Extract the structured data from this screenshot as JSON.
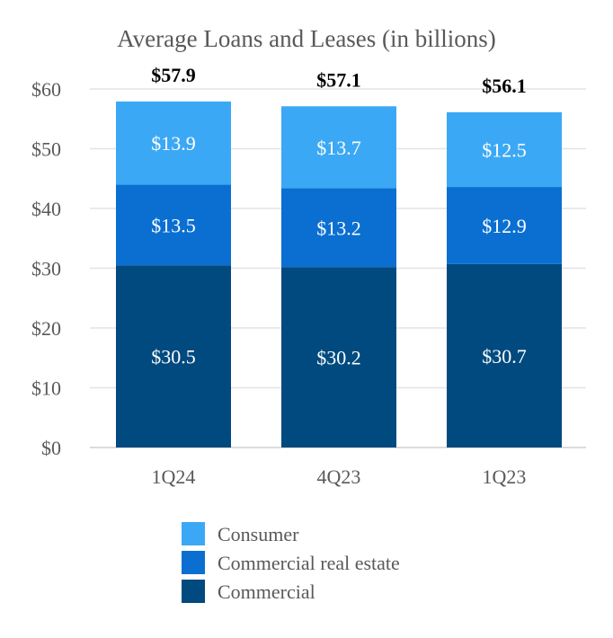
{
  "chart_data": {
    "type": "bar",
    "stacked": true,
    "title": "Average Loans and Leases (in billions)",
    "categories": [
      "1Q24",
      "4Q23",
      "1Q23"
    ],
    "ylim": [
      0,
      60
    ],
    "yticks": [
      0,
      10,
      20,
      30,
      40,
      50,
      60
    ],
    "ytick_labels": [
      "$0",
      "$10",
      "$20",
      "$30",
      "$40",
      "$50",
      "$60"
    ],
    "grid": true,
    "legend_position": "bottom",
    "series": [
      {
        "name": "Commercial",
        "values": [
          30.5,
          30.2,
          30.7
        ],
        "labels": [
          "$30.5",
          "$30.2",
          "$30.7"
        ],
        "color": "#004a7f"
      },
      {
        "name": "Commercial real estate",
        "values": [
          13.5,
          13.2,
          12.9
        ],
        "labels": [
          "$13.5",
          "$13.2",
          "$12.9"
        ],
        "color": "#0a6fd1"
      },
      {
        "name": "Consumer",
        "values": [
          13.9,
          13.7,
          12.5
        ],
        "labels": [
          "$13.9",
          "$13.7",
          "$12.5"
        ],
        "color": "#3ba8f5"
      }
    ],
    "totals": [
      57.9,
      57.1,
      56.1
    ],
    "total_labels": [
      "$57.9",
      "$57.1",
      "$56.1"
    ],
    "legend_order": [
      "Consumer",
      "Commercial real estate",
      "Commercial"
    ]
  }
}
